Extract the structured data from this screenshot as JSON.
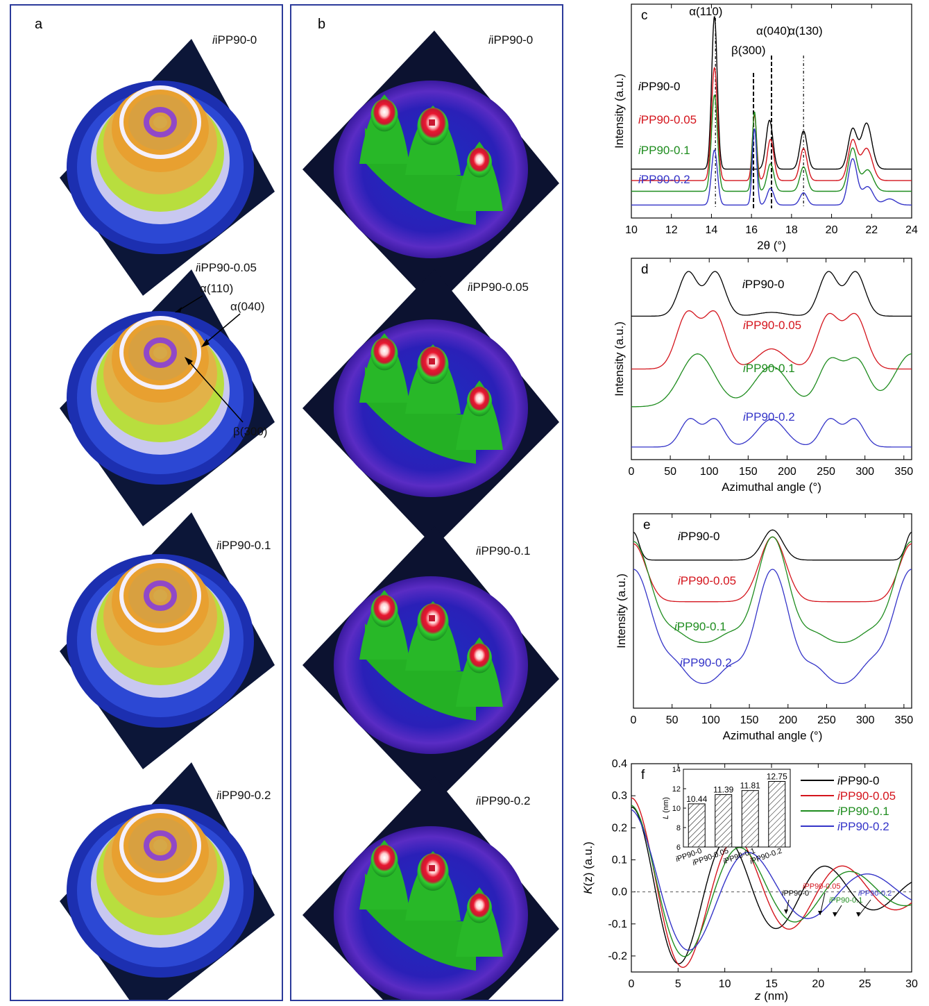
{
  "panels": {
    "a": {
      "label": "a",
      "samples": [
        "iPP90-0",
        "iPP90-0.05",
        "iPP90-0.1",
        "iPP90-0.2"
      ],
      "annotations": [
        "α(110)",
        "α(040)",
        "β(300)"
      ]
    },
    "b": {
      "label": "b",
      "samples": [
        "iPP90-0",
        "iPP90-0.05",
        "iPP90-0.1",
        "iPP90-0.2"
      ]
    }
  },
  "colors": {
    "s0": "#000000",
    "s005": "#d4141c",
    "s01": "#1e8c1e",
    "s02": "#3434c8",
    "box": "#2b3a9a"
  },
  "chart_data": [
    {
      "id": "c",
      "type": "line",
      "label": "c",
      "xlabel": "2θ (°)",
      "ylabel": "Intensity (a.u.)",
      "xlim": [
        10,
        24
      ],
      "xticks": [
        10,
        12,
        14,
        16,
        18,
        20,
        22,
        24
      ],
      "peak_labels": [
        {
          "text": "α(110)",
          "x": 14.2
        },
        {
          "text": "β(300)",
          "x": 16.1
        },
        {
          "text": "α(040)",
          "x": 17.0
        },
        {
          "text": "α(130)",
          "x": 18.6
        }
      ],
      "series": [
        {
          "name": "iPP90-0",
          "color": "#000000",
          "offset": 1.0,
          "peaks": [
            [
              14.15,
              10.0,
              0.14
            ],
            [
              16.9,
              3.2,
              0.17
            ],
            [
              18.6,
              2.5,
              0.18
            ],
            [
              21.05,
              2.6,
              0.22
            ],
            [
              21.75,
              3.0,
              0.26
            ]
          ]
        },
        {
          "name": "iPP90-0.05",
          "color": "#d4141c",
          "offset": 0.25,
          "peaks": [
            [
              14.15,
              7.4,
              0.15
            ],
            [
              16.15,
              4.3,
              0.11
            ],
            [
              16.95,
              2.7,
              0.17
            ],
            [
              18.6,
              2.1,
              0.18
            ],
            [
              21.05,
              2.6,
              0.22
            ],
            [
              21.75,
              2.1,
              0.28
            ]
          ]
        },
        {
          "name": "iPP90-0.1",
          "color": "#1e8c1e",
          "offset": -0.45,
          "peaks": [
            [
              14.15,
              6.3,
              0.15
            ],
            [
              16.15,
              5.2,
              0.11
            ],
            [
              16.95,
              1.8,
              0.17
            ],
            [
              18.6,
              1.6,
              0.18
            ],
            [
              21.05,
              2.8,
              0.22
            ],
            [
              21.8,
              1.4,
              0.28
            ]
          ]
        },
        {
          "name": "iPP90-0.2",
          "color": "#3434c8",
          "offset": -1.35,
          "peaks": [
            [
              14.15,
              3.6,
              0.15
            ],
            [
              16.15,
              5.0,
              0.11
            ],
            [
              16.95,
              1.1,
              0.17
            ],
            [
              18.6,
              0.8,
              0.18
            ],
            [
              21.05,
              3.0,
              0.22
            ],
            [
              21.8,
              1.2,
              0.28
            ],
            [
              22.9,
              0.4,
              0.3
            ]
          ]
        }
      ]
    },
    {
      "id": "d",
      "type": "line",
      "label": "d",
      "xlabel": "Azimuthal angle (°)",
      "ylabel": "Intensity (a.u.)",
      "xlim": [
        0,
        360
      ],
      "xticks": [
        0,
        50,
        100,
        150,
        200,
        250,
        300,
        350
      ],
      "series": [
        {
          "name": "iPP90-0",
          "color": "#000000",
          "offset": 4.3,
          "peaks": [
            [
              73,
              1.75,
              12
            ],
            [
              108,
              1.75,
              12
            ],
            [
              180,
              0.15,
              18
            ],
            [
              253,
              1.75,
              12
            ],
            [
              288,
              1.75,
              12
            ]
          ]
        },
        {
          "name": "iPP90-0.05",
          "color": "#d4141c",
          "offset": 2.2,
          "peaks": [
            [
              72,
              2.2,
              14
            ],
            [
              107,
              2.2,
              14
            ],
            [
              180,
              0.8,
              18
            ],
            [
              253,
              2.1,
              14
            ],
            [
              288,
              2.1,
              14
            ]
          ]
        },
        {
          "name": "iPP90-0.1",
          "color": "#1e8c1e",
          "offset": 0.7,
          "peaks": [
            [
              85,
              2.1,
              22
            ],
            [
              180,
              1.6,
              22
            ],
            [
              255,
              1.8,
              15
            ],
            [
              290,
              1.8,
              15
            ],
            [
              360,
              2.1,
              22
            ]
          ]
        },
        {
          "name": "iPP90-0.2",
          "color": "#3434c8",
          "offset": -0.9,
          "peaks": [
            [
              75,
              1.1,
              12
            ],
            [
              107,
              1.1,
              12
            ],
            [
              180,
              1.1,
              18
            ],
            [
              255,
              1.1,
              12
            ],
            [
              287,
              1.1,
              12
            ]
          ]
        }
      ]
    },
    {
      "id": "e",
      "type": "line",
      "label": "e",
      "xlabel": "Azimuthal angle (°)",
      "ylabel": "Intensity (a.u.)",
      "xlim": [
        0,
        360
      ],
      "xticks": [
        0,
        50,
        100,
        150,
        200,
        250,
        300,
        350
      ],
      "series": [
        {
          "name": "iPP90-0",
          "color": "#000000",
          "offset": 4.4,
          "peaks": [
            [
              0,
              1.2,
              7
            ],
            [
              180,
              1.3,
              13
            ],
            [
              360,
              1.2,
              7
            ]
          ]
        },
        {
          "name": "iPP90-0.05",
          "color": "#d4141c",
          "offset": 2.6,
          "peaks": [
            [
              0,
              2.5,
              16
            ],
            [
              180,
              2.8,
              17
            ],
            [
              360,
              2.5,
              16
            ]
          ]
        },
        {
          "name": "iPP90-0.1",
          "color": "#1e8c1e",
          "offset": 0.8,
          "peaks": [
            [
              0,
              4.4,
              22
            ],
            [
              180,
              4.6,
              20
            ],
            [
              360,
              4.4,
              22
            ],
            [
              55,
              0.4,
              14
            ],
            [
              125,
              0.4,
              14
            ],
            [
              235,
              0.4,
              14
            ],
            [
              305,
              0.4,
              14
            ]
          ]
        },
        {
          "name": "iPP90-0.2",
          "color": "#3434c8",
          "offset": -1.0,
          "peaks": [
            [
              0,
              5.0,
              24
            ],
            [
              180,
              5.0,
              21
            ],
            [
              360,
              5.0,
              24
            ],
            [
              55,
              0.7,
              14
            ],
            [
              125,
              0.7,
              14
            ],
            [
              235,
              0.7,
              14
            ],
            [
              305,
              0.7,
              14
            ]
          ]
        }
      ]
    },
    {
      "id": "f",
      "type": "line",
      "label": "f",
      "xlabel": "z (nm)",
      "ylabel": "K(z) (a.u.)",
      "xlim": [
        0,
        30
      ],
      "ylim": [
        -0.25,
        0.4
      ],
      "xticks": [
        0,
        5,
        10,
        15,
        20,
        25,
        30
      ],
      "yticks": [
        -0.2,
        -0.1,
        0.0,
        0.1,
        0.2,
        0.3,
        0.4
      ],
      "legend": "top-right",
      "series": [
        {
          "name": "iPP90-0",
          "color": "#000000",
          "k0": 0.33,
          "period": 10.44,
          "damp": 0.068,
          "tail": 0.2
        },
        {
          "name": "iPP90-0.05",
          "color": "#d4141c",
          "k0": 0.345,
          "period": 11.39,
          "damp": 0.064,
          "tail": 0.15
        },
        {
          "name": "iPP90-0.1",
          "color": "#1e8c1e",
          "k0": 0.3,
          "period": 11.81,
          "damp": 0.066,
          "tail": 0.1
        },
        {
          "name": "iPP90-0.2",
          "color": "#3434c8",
          "k0": 0.27,
          "period": 12.75,
          "damp": 0.062,
          "tail": 0.05
        }
      ],
      "annotations": [
        "iPP90-0",
        "iPP90-0.05",
        "iPP90-0.1",
        "iPP90-0.2"
      ],
      "inset": {
        "type": "bar",
        "ylabel": "L (nm)",
        "ylim": [
          6,
          14
        ],
        "yticks": [
          6,
          8,
          10,
          12,
          14
        ],
        "categories": [
          "iPP90-0",
          "iPP90-0.05",
          "iPP90-0.1",
          "iPP90-0.2"
        ],
        "values": [
          10.44,
          11.39,
          11.81,
          12.75
        ],
        "value_labels": [
          "10.44",
          "11.39",
          "11.81",
          "12.75"
        ]
      }
    }
  ]
}
